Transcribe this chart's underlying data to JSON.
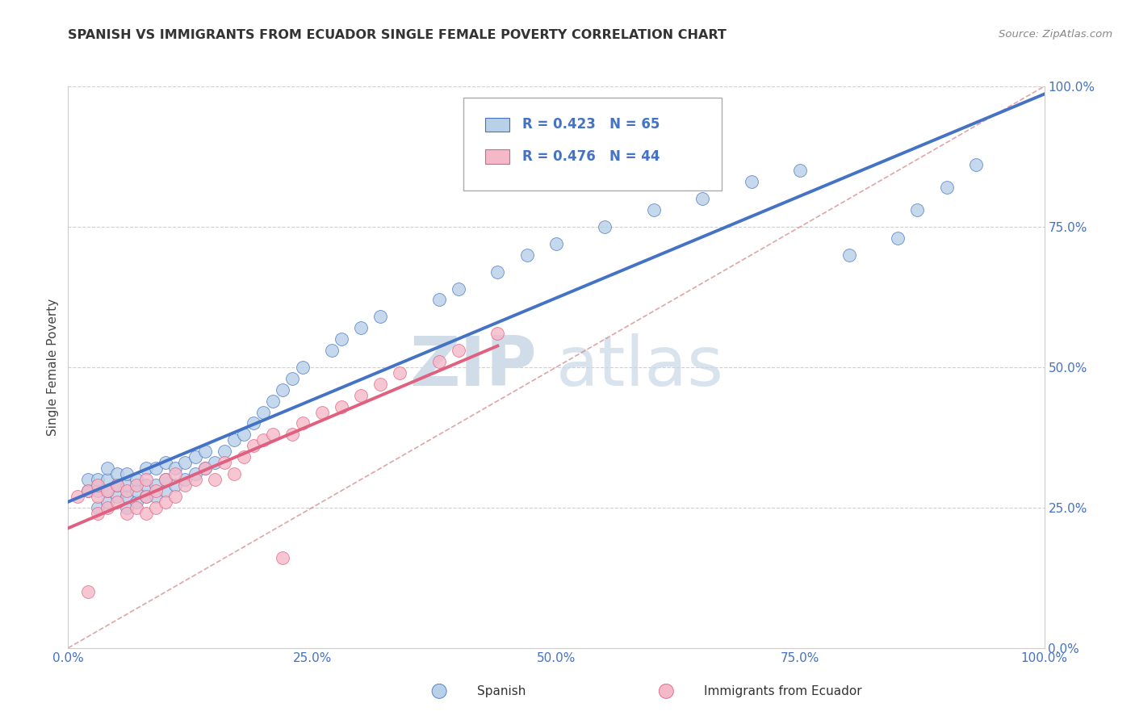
{
  "title": "SPANISH VS IMMIGRANTS FROM ECUADOR SINGLE FEMALE POVERTY CORRELATION CHART",
  "source": "Source: ZipAtlas.com",
  "ylabel": "Single Female Poverty",
  "legend_bottom": [
    "Spanish",
    "Immigrants from Ecuador"
  ],
  "r_spanish": 0.423,
  "n_spanish": 65,
  "r_ecuador": 0.476,
  "n_ecuador": 44,
  "xlim": [
    0,
    1
  ],
  "ylim": [
    0,
    1
  ],
  "xticks": [
    0.0,
    0.25,
    0.5,
    0.75,
    1.0
  ],
  "yticks": [
    0.0,
    0.25,
    0.5,
    0.75,
    1.0
  ],
  "tick_labels_x": [
    "0.0%",
    "25.0%",
    "50.0%",
    "75.0%",
    "100.0%"
  ],
  "tick_labels_y": [
    "0.0%",
    "25.0%",
    "50.0%",
    "75.0%",
    "100.0%"
  ],
  "color_spanish_fill": "#b8d0e8",
  "color_spanish_edge": "#4472C4",
  "color_ecuador_fill": "#f5b8c8",
  "color_ecuador_edge": "#e06080",
  "color_line_spanish": "#4472C4",
  "color_line_ecuador": "#e06080",
  "color_text_blue": "#4472C4",
  "color_diag": "#d08080",
  "color_grid": "#d0d0d0",
  "watermark_color": "#d0dce8",
  "spanish_x": [
    0.02,
    0.02,
    0.03,
    0.03,
    0.03,
    0.04,
    0.04,
    0.04,
    0.04,
    0.05,
    0.05,
    0.05,
    0.06,
    0.06,
    0.06,
    0.06,
    0.07,
    0.07,
    0.07,
    0.08,
    0.08,
    0.08,
    0.09,
    0.09,
    0.09,
    0.1,
    0.1,
    0.1,
    0.11,
    0.11,
    0.12,
    0.12,
    0.13,
    0.13,
    0.14,
    0.14,
    0.15,
    0.16,
    0.17,
    0.18,
    0.19,
    0.2,
    0.21,
    0.22,
    0.23,
    0.24,
    0.27,
    0.28,
    0.3,
    0.32,
    0.38,
    0.4,
    0.44,
    0.47,
    0.5,
    0.55,
    0.6,
    0.65,
    0.7,
    0.75,
    0.8,
    0.85,
    0.87,
    0.9,
    0.93
  ],
  "spanish_y": [
    0.28,
    0.3,
    0.25,
    0.28,
    0.3,
    0.26,
    0.28,
    0.3,
    0.32,
    0.27,
    0.29,
    0.31,
    0.25,
    0.27,
    0.29,
    0.31,
    0.26,
    0.28,
    0.3,
    0.27,
    0.29,
    0.32,
    0.27,
    0.29,
    0.32,
    0.28,
    0.3,
    0.33,
    0.29,
    0.32,
    0.3,
    0.33,
    0.31,
    0.34,
    0.32,
    0.35,
    0.33,
    0.35,
    0.37,
    0.38,
    0.4,
    0.42,
    0.44,
    0.46,
    0.48,
    0.5,
    0.53,
    0.55,
    0.57,
    0.59,
    0.62,
    0.64,
    0.67,
    0.7,
    0.72,
    0.75,
    0.78,
    0.8,
    0.83,
    0.85,
    0.7,
    0.73,
    0.78,
    0.82,
    0.86
  ],
  "ecuador_x": [
    0.01,
    0.02,
    0.02,
    0.03,
    0.03,
    0.03,
    0.04,
    0.04,
    0.05,
    0.05,
    0.06,
    0.06,
    0.07,
    0.07,
    0.08,
    0.08,
    0.08,
    0.09,
    0.09,
    0.1,
    0.1,
    0.11,
    0.11,
    0.12,
    0.13,
    0.14,
    0.15,
    0.16,
    0.17,
    0.18,
    0.19,
    0.2,
    0.21,
    0.22,
    0.23,
    0.24,
    0.26,
    0.28,
    0.3,
    0.32,
    0.34,
    0.38,
    0.4,
    0.44
  ],
  "ecuador_y": [
    0.27,
    0.1,
    0.28,
    0.24,
    0.27,
    0.29,
    0.25,
    0.28,
    0.26,
    0.29,
    0.24,
    0.28,
    0.25,
    0.29,
    0.24,
    0.27,
    0.3,
    0.25,
    0.28,
    0.26,
    0.3,
    0.27,
    0.31,
    0.29,
    0.3,
    0.32,
    0.3,
    0.33,
    0.31,
    0.34,
    0.36,
    0.37,
    0.38,
    0.16,
    0.38,
    0.4,
    0.42,
    0.43,
    0.45,
    0.47,
    0.49,
    0.51,
    0.53,
    0.56
  ],
  "line_sp_x0": 0.0,
  "line_sp_y0": 0.27,
  "line_sp_x1": 1.0,
  "line_sp_y1": 0.87,
  "line_ec_x0": 0.0,
  "line_ec_y0": 0.27,
  "line_ec_x1": 0.44,
  "line_ec_y1": 0.4
}
